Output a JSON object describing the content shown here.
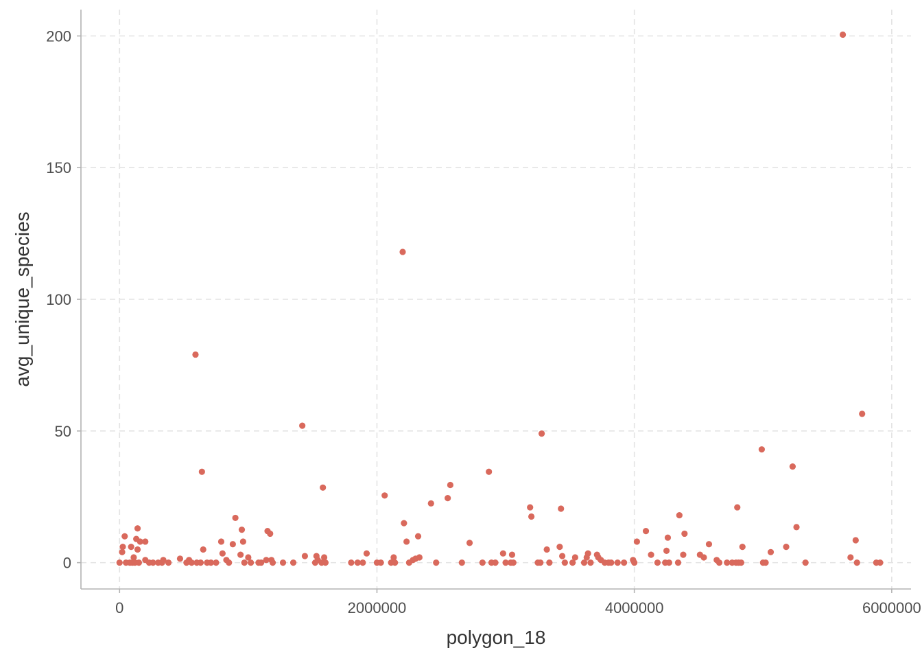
{
  "chart_data": {
    "type": "scatter",
    "xlabel": "polygon_18",
    "ylabel": "avg_unique_species",
    "xlim": [
      -300000,
      6150000
    ],
    "ylim": [
      -10,
      210
    ],
    "x_ticks": [
      0,
      2000000,
      4000000,
      6000000
    ],
    "x_tick_labels": [
      "0",
      "2000000",
      "4000000",
      "6000000"
    ],
    "y_ticks": [
      0,
      50,
      100,
      150,
      200
    ],
    "y_tick_labels": [
      "0",
      "50",
      "100",
      "150",
      "200"
    ],
    "grid": true,
    "point_color": "#d9695c",
    "points": [
      [
        0,
        0
      ],
      [
        20000,
        4
      ],
      [
        25000,
        6
      ],
      [
        40000,
        10
      ],
      [
        50000,
        0
      ],
      [
        80000,
        0
      ],
      [
        90000,
        6
      ],
      [
        100000,
        0
      ],
      [
        110000,
        2
      ],
      [
        120000,
        0
      ],
      [
        130000,
        9
      ],
      [
        140000,
        13
      ],
      [
        140000,
        5
      ],
      [
        150000,
        0
      ],
      [
        160000,
        8
      ],
      [
        200000,
        1
      ],
      [
        200000,
        8
      ],
      [
        230000,
        0
      ],
      [
        260000,
        0
      ],
      [
        300000,
        0
      ],
      [
        330000,
        0
      ],
      [
        340000,
        1
      ],
      [
        380000,
        0
      ],
      [
        470000,
        1.5
      ],
      [
        520000,
        0
      ],
      [
        540000,
        1
      ],
      [
        560000,
        0
      ],
      [
        590000,
        79
      ],
      [
        600000,
        0
      ],
      [
        630000,
        0
      ],
      [
        640000,
        34.5
      ],
      [
        650000,
        5
      ],
      [
        680000,
        0
      ],
      [
        710000,
        0
      ],
      [
        750000,
        0
      ],
      [
        790000,
        8
      ],
      [
        800000,
        3.5
      ],
      [
        830000,
        1
      ],
      [
        850000,
        0
      ],
      [
        880000,
        7
      ],
      [
        900000,
        17
      ],
      [
        940000,
        3
      ],
      [
        950000,
        12.5
      ],
      [
        960000,
        8
      ],
      [
        970000,
        0
      ],
      [
        1000000,
        2
      ],
      [
        1020000,
        0
      ],
      [
        1080000,
        0
      ],
      [
        1100000,
        0
      ],
      [
        1140000,
        1
      ],
      [
        1150000,
        12
      ],
      [
        1170000,
        11
      ],
      [
        1180000,
        1
      ],
      [
        1190000,
        0
      ],
      [
        1270000,
        0
      ],
      [
        1350000,
        0
      ],
      [
        1420000,
        52
      ],
      [
        1440000,
        2.5
      ],
      [
        1520000,
        0
      ],
      [
        1530000,
        2.5
      ],
      [
        1540000,
        1
      ],
      [
        1570000,
        0
      ],
      [
        1580000,
        28.5
      ],
      [
        1590000,
        2
      ],
      [
        1600000,
        0
      ],
      [
        1800000,
        0
      ],
      [
        1850000,
        0
      ],
      [
        1890000,
        0
      ],
      [
        1920000,
        3.5
      ],
      [
        2000000,
        0
      ],
      [
        2030000,
        0
      ],
      [
        2060000,
        25.5
      ],
      [
        2110000,
        0
      ],
      [
        2130000,
        2
      ],
      [
        2140000,
        0
      ],
      [
        2200000,
        118
      ],
      [
        2210000,
        15
      ],
      [
        2230000,
        8
      ],
      [
        2250000,
        0
      ],
      [
        2280000,
        1
      ],
      [
        2300000,
        1.5
      ],
      [
        2320000,
        10
      ],
      [
        2330000,
        2
      ],
      [
        2420000,
        22.5
      ],
      [
        2460000,
        0
      ],
      [
        2550000,
        24.5
      ],
      [
        2570000,
        29.5
      ],
      [
        2660000,
        0
      ],
      [
        2720000,
        7.5
      ],
      [
        2820000,
        0
      ],
      [
        2870000,
        34.5
      ],
      [
        2890000,
        0
      ],
      [
        2920000,
        0
      ],
      [
        2980000,
        3.5
      ],
      [
        3000000,
        0
      ],
      [
        3040000,
        0
      ],
      [
        3050000,
        3
      ],
      [
        3060000,
        0
      ],
      [
        3190000,
        21
      ],
      [
        3200000,
        17.5
      ],
      [
        3250000,
        0
      ],
      [
        3270000,
        0
      ],
      [
        3280000,
        49
      ],
      [
        3320000,
        5
      ],
      [
        3340000,
        0
      ],
      [
        3420000,
        6
      ],
      [
        3430000,
        20.5
      ],
      [
        3440000,
        2.5
      ],
      [
        3460000,
        0
      ],
      [
        3520000,
        0
      ],
      [
        3540000,
        2
      ],
      [
        3610000,
        0
      ],
      [
        3630000,
        2
      ],
      [
        3640000,
        3.5
      ],
      [
        3660000,
        0
      ],
      [
        3710000,
        3
      ],
      [
        3720000,
        2
      ],
      [
        3740000,
        1
      ],
      [
        3770000,
        0
      ],
      [
        3800000,
        0
      ],
      [
        3820000,
        0
      ],
      [
        3870000,
        0
      ],
      [
        3920000,
        0
      ],
      [
        3990000,
        1
      ],
      [
        4000000,
        0
      ],
      [
        4020000,
        8
      ],
      [
        4090000,
        12
      ],
      [
        4130000,
        3
      ],
      [
        4180000,
        0
      ],
      [
        4240000,
        0
      ],
      [
        4250000,
        4.5
      ],
      [
        4260000,
        9.5
      ],
      [
        4270000,
        0
      ],
      [
        4340000,
        0
      ],
      [
        4350000,
        18
      ],
      [
        4380000,
        3
      ],
      [
        4390000,
        11
      ],
      [
        4510000,
        3
      ],
      [
        4540000,
        2
      ],
      [
        4580000,
        7
      ],
      [
        4640000,
        1
      ],
      [
        4660000,
        0
      ],
      [
        4720000,
        0
      ],
      [
        4760000,
        0
      ],
      [
        4790000,
        0
      ],
      [
        4800000,
        21
      ],
      [
        4810000,
        0
      ],
      [
        4830000,
        0
      ],
      [
        4840000,
        6
      ],
      [
        4990000,
        43
      ],
      [
        5000000,
        0
      ],
      [
        5020000,
        0
      ],
      [
        5060000,
        4
      ],
      [
        5180000,
        6
      ],
      [
        5230000,
        36.5
      ],
      [
        5260000,
        13.5
      ],
      [
        5330000,
        0
      ],
      [
        5620000,
        200.5
      ],
      [
        5680000,
        2
      ],
      [
        5720000,
        8.5
      ],
      [
        5730000,
        0
      ],
      [
        5770000,
        56.5
      ],
      [
        5880000,
        0
      ],
      [
        5910000,
        0
      ]
    ]
  }
}
